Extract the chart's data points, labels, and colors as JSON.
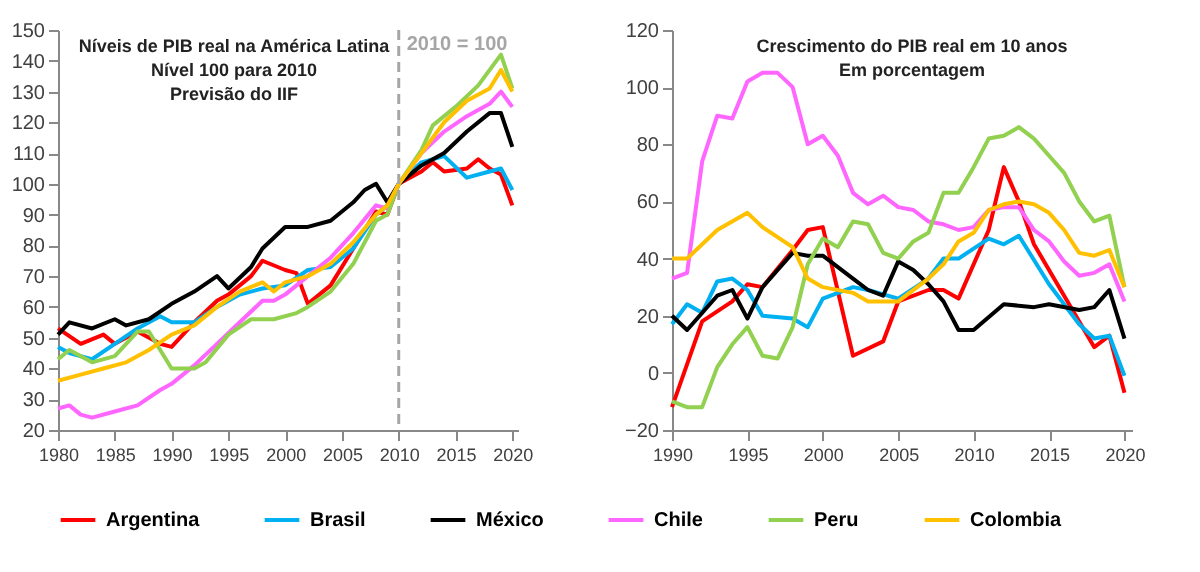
{
  "chart_data": [
    {
      "type": "line",
      "title": "Níveis de PIB real na América Latina",
      "subtitle": "Nível 100 para 2010",
      "annotations": [
        "Previsão do IIF"
      ],
      "xlim": [
        1980,
        2020.5
      ],
      "xticks": [
        1980,
        1985,
        1990,
        1995,
        2000,
        2005,
        2010,
        2015,
        2020
      ],
      "ylim": [
        20,
        150
      ],
      "yticks": [
        20,
        30,
        40,
        50,
        60,
        70,
        80,
        90,
        100,
        110,
        120,
        130,
        140,
        150
      ],
      "grid": false,
      "legend": "bottom",
      "marker": "none",
      "line_style": "solid",
      "ref_lines": [
        {
          "axis": "x",
          "value": 2010,
          "label": "2010 = 100",
          "color": "#a6a6a6",
          "line_style": "dashed"
        }
      ],
      "series": [
        {
          "name": "Argentina",
          "color": "#ff0000",
          "x": [
            1980,
            1982,
            1984,
            1985,
            1987,
            1989,
            1990,
            1992,
            1994,
            1995,
            1997,
            1998,
            2000,
            2001,
            2002,
            2004,
            2006,
            2008,
            2009,
            2010,
            2012,
            2013,
            2014,
            2016,
            2017,
            2018,
            2019,
            2020
          ],
          "values": [
            53,
            48,
            51,
            48,
            52,
            48,
            47,
            55,
            62,
            64,
            70,
            75,
            72,
            71,
            61,
            67,
            79,
            91,
            90,
            100,
            104,
            107,
            104,
            105,
            108,
            105,
            103,
            93
          ]
        },
        {
          "name": "Brasil",
          "color": "#00b0f0",
          "x": [
            1980,
            1981,
            1983,
            1985,
            1987,
            1989,
            1990,
            1992,
            1994,
            1996,
            1998,
            2000,
            2002,
            2004,
            2006,
            2008,
            2009,
            2010,
            2012,
            2014,
            2016,
            2018,
            2019,
            2020
          ],
          "values": [
            47,
            45,
            43,
            48,
            53,
            57,
            55,
            55,
            60,
            64,
            66,
            67,
            72,
            73,
            79,
            90,
            93,
            100,
            107,
            109,
            102,
            104,
            105,
            98
          ]
        },
        {
          "name": "México",
          "color": "#000000",
          "x": [
            1980,
            1981,
            1983,
            1985,
            1986,
            1988,
            1990,
            1992,
            1994,
            1995,
            1997,
            1998,
            2000,
            2002,
            2004,
            2006,
            2007,
            2008,
            2009,
            2010,
            2012,
            2014,
            2016,
            2018,
            2019,
            2020
          ],
          "values": [
            51,
            55,
            53,
            56,
            54,
            56,
            61,
            65,
            70,
            66,
            73,
            79,
            86,
            86,
            88,
            94,
            98,
            100,
            94,
            100,
            106,
            110,
            117,
            123,
            123,
            112
          ]
        },
        {
          "name": "Chile",
          "color": "#ff66ff",
          "x": [
            1980,
            1981,
            1982,
            1983,
            1985,
            1987,
            1989,
            1990,
            1992,
            1994,
            1996,
            1998,
            1999,
            2000,
            2002,
            2004,
            2006,
            2008,
            2009,
            2010,
            2012,
            2014,
            2016,
            2018,
            2019,
            2020
          ],
          "values": [
            27,
            28,
            25,
            24,
            26,
            28,
            33,
            35,
            41,
            48,
            55,
            62,
            62,
            64,
            70,
            76,
            84,
            93,
            92,
            100,
            110,
            117,
            122,
            126,
            130,
            125
          ]
        },
        {
          "name": "Peru",
          "color": "#92d050",
          "x": [
            1980,
            1981,
            1983,
            1985,
            1987,
            1988,
            1990,
            1992,
            1993,
            1995,
            1997,
            1999,
            2001,
            2002,
            2004,
            2006,
            2008,
            2009,
            2010,
            2012,
            2013,
            2015,
            2017,
            2019,
            2020
          ],
          "values": [
            43,
            46,
            42,
            44,
            52,
            52,
            40,
            40,
            42,
            51,
            56,
            56,
            58,
            60,
            65,
            74,
            88,
            90,
            100,
            111,
            119,
            125,
            132,
            142,
            131
          ]
        },
        {
          "name": "Colombia",
          "color": "#ffc000",
          "x": [
            1980,
            1982,
            1984,
            1986,
            1988,
            1990,
            1992,
            1994,
            1996,
            1998,
            1999,
            2000,
            2002,
            2004,
            2006,
            2008,
            2009,
            2010,
            2012,
            2014,
            2016,
            2018,
            2019,
            2020
          ],
          "values": [
            36,
            38,
            40,
            42,
            46,
            51,
            54,
            60,
            65,
            68,
            65,
            68,
            70,
            74,
            81,
            90,
            93,
            100,
            110,
            120,
            127,
            131,
            137,
            130
          ]
        }
      ]
    },
    {
      "type": "line",
      "title": "Crescimento do PIB real em 10 anos",
      "subtitle": "Em porcentagem",
      "xlim": [
        1990,
        2020.5
      ],
      "xticks": [
        1990,
        1995,
        2000,
        2005,
        2010,
        2015,
        2020
      ],
      "ylim": [
        -20,
        120
      ],
      "yticks": [
        -20,
        0,
        20,
        40,
        60,
        80,
        100,
        120
      ],
      "grid": false,
      "legend": "bottom",
      "marker": "none",
      "line_style": "solid",
      "series": [
        {
          "name": "Argentina",
          "color": "#ff0000",
          "x": [
            1990,
            1992,
            1994,
            1995,
            1996,
            1998,
            1999,
            2000,
            2002,
            2004,
            2005,
            2007,
            2008,
            2009,
            2011,
            2012,
            2013,
            2014,
            2016,
            2018,
            2019,
            2020
          ],
          "values": [
            -12,
            18,
            25,
            31,
            30,
            43,
            50,
            51,
            6,
            11,
            25,
            29,
            29,
            26,
            50,
            72,
            60,
            45,
            27,
            9,
            13,
            -7
          ]
        },
        {
          "name": "Brasil",
          "color": "#00b0f0",
          "x": [
            1990,
            1991,
            1992,
            1993,
            1994,
            1995,
            1996,
            1998,
            1999,
            2000,
            2002,
            2003,
            2005,
            2007,
            2008,
            2009,
            2011,
            2012,
            2013,
            2015,
            2017,
            2018,
            2019,
            2020
          ],
          "values": [
            17,
            24,
            21,
            32,
            33,
            29,
            20,
            19,
            16,
            26,
            30,
            29,
            26,
            33,
            40,
            40,
            47,
            45,
            48,
            31,
            17,
            12,
            13,
            -1
          ]
        },
        {
          "name": "México",
          "color": "#000000",
          "x": [
            1990,
            1991,
            1993,
            1994,
            1995,
            1996,
            1998,
            1999,
            2000,
            2002,
            2003,
            2004,
            2005,
            2006,
            2007,
            2008,
            2009,
            2010,
            2012,
            2014,
            2015,
            2017,
            2018,
            2019,
            2020
          ],
          "values": [
            20,
            15,
            27,
            29,
            19,
            30,
            42,
            41,
            41,
            33,
            29,
            27,
            39,
            36,
            31,
            25,
            15,
            15,
            24,
            23,
            24,
            22,
            23,
            29,
            12
          ]
        },
        {
          "name": "Chile",
          "color": "#ff66ff",
          "x": [
            1990,
            1991,
            1992,
            1993,
            1994,
            1995,
            1996,
            1997,
            1998,
            1999,
            2000,
            2001,
            2002,
            2003,
            2004,
            2005,
            2006,
            2007,
            2008,
            2009,
            2010,
            2011,
            2012,
            2013,
            2014,
            2015,
            2016,
            2017,
            2018,
            2019,
            2020
          ],
          "values": [
            33,
            35,
            74,
            90,
            89,
            102,
            105,
            105,
            100,
            80,
            83,
            76,
            63,
            59,
            62,
            58,
            57,
            53,
            52,
            50,
            51,
            57,
            58,
            58,
            50,
            46,
            39,
            34,
            35,
            38,
            25
          ]
        },
        {
          "name": "Peru",
          "color": "#92d050",
          "x": [
            1990,
            1991,
            1992,
            1993,
            1994,
            1995,
            1996,
            1997,
            1998,
            1999,
            2000,
            2001,
            2002,
            2003,
            2004,
            2005,
            2006,
            2007,
            2008,
            2009,
            2010,
            2011,
            2012,
            2013,
            2014,
            2015,
            2016,
            2017,
            2018,
            2019,
            2020
          ],
          "values": [
            -10,
            -12,
            -12,
            2,
            10,
            16,
            6,
            5,
            16,
            38,
            47,
            44,
            53,
            52,
            42,
            40,
            46,
            49,
            63,
            63,
            72,
            82,
            83,
            86,
            82,
            76,
            70,
            60,
            53,
            55,
            30
          ]
        },
        {
          "name": "Colombia",
          "color": "#ffc000",
          "x": [
            1990,
            1991,
            1993,
            1995,
            1996,
            1998,
            1999,
            2000,
            2002,
            2003,
            2005,
            2007,
            2008,
            2009,
            2010,
            2011,
            2012,
            2013,
            2014,
            2015,
            2016,
            2017,
            2018,
            2019,
            2020
          ],
          "values": [
            40,
            40,
            50,
            56,
            51,
            44,
            33,
            30,
            28,
            25,
            25,
            33,
            38,
            46,
            49,
            57,
            59,
            60,
            59,
            56,
            50,
            42,
            41,
            43,
            30
          ]
        }
      ]
    }
  ]
}
